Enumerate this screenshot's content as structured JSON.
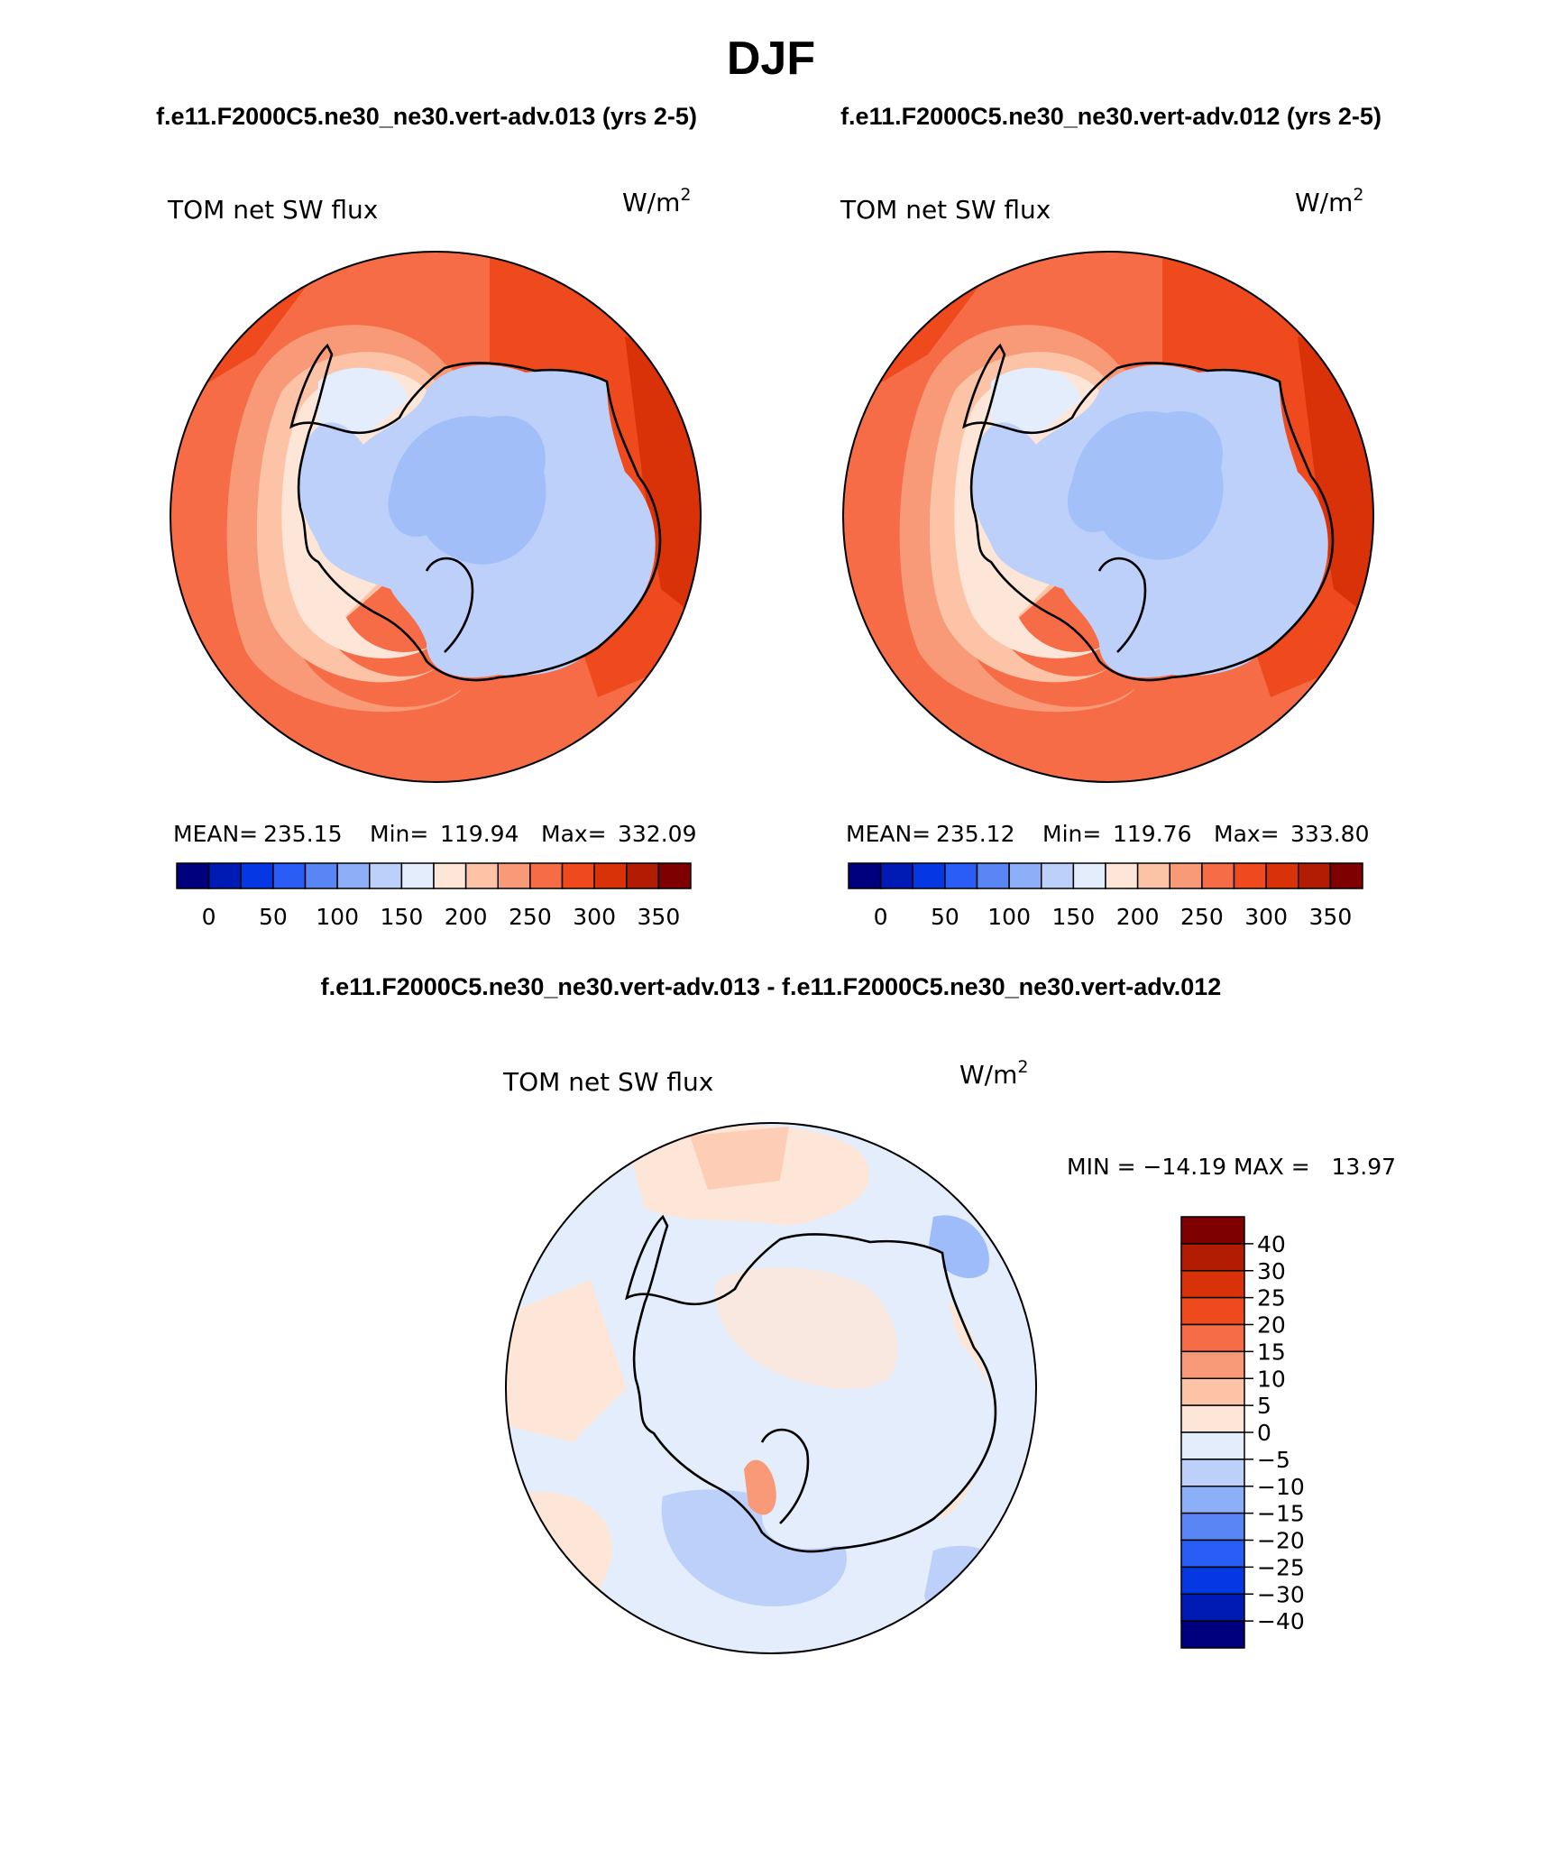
{
  "figure": {
    "season": "DJF",
    "case1_title": "f.e11.F2000C5.ne30_ne30.vert-adv.013 (yrs 2-5)",
    "case2_title": "f.e11.F2000C5.ne30_ne30.vert-adv.012 (yrs 2-5)",
    "diff_title": "f.e11.F2000C5.ne30_ne30.vert-adv.013 - f.e11.F2000C5.ne30_ne30.vert-adv.012"
  },
  "chart_data": [
    {
      "type": "heatmap",
      "projection": "south-polar-stereographic",
      "variable": "TOM net SW flux",
      "units": "W/m",
      "units_exponent": "2",
      "stats": {
        "mean_label": "MEAN=",
        "mean": "235.15",
        "min_label": "Min=",
        "min": "119.94",
        "max_label": "Max=",
        "max": "332.09"
      },
      "colorbar": {
        "orientation": "horizontal",
        "levels": [
          0,
          25,
          50,
          75,
          100,
          125,
          150,
          175,
          200,
          225,
          250,
          275,
          300,
          325,
          350
        ],
        "tick_labels": [
          "0",
          "50",
          "100",
          "150",
          "200",
          "250",
          "300",
          "350"
        ],
        "colors": [
          "#00007f",
          "#001bb4",
          "#0537e2",
          "#2a5df5",
          "#5a86f5",
          "#8caff7",
          "#bcd0fa",
          "#e3edfc",
          "#fde6d8",
          "#fcc3a7",
          "#f89a77",
          "#f66c47",
          "#ee4a1d",
          "#d93208",
          "#b21c02",
          "#7f0000"
        ]
      }
    },
    {
      "type": "heatmap",
      "projection": "south-polar-stereographic",
      "variable": "TOM net SW flux",
      "units": "W/m",
      "units_exponent": "2",
      "stats": {
        "mean_label": "MEAN=",
        "mean": "235.12",
        "min_label": "Min=",
        "min": "119.76",
        "max_label": "Max=",
        "max": "333.80"
      },
      "colorbar": {
        "orientation": "horizontal",
        "levels": [
          0,
          25,
          50,
          75,
          100,
          125,
          150,
          175,
          200,
          225,
          250,
          275,
          300,
          325,
          350
        ],
        "tick_labels": [
          "0",
          "50",
          "100",
          "150",
          "200",
          "250",
          "300",
          "350"
        ],
        "colors": [
          "#00007f",
          "#001bb4",
          "#0537e2",
          "#2a5df5",
          "#5a86f5",
          "#8caff7",
          "#bcd0fa",
          "#e3edfc",
          "#fde6d8",
          "#fcc3a7",
          "#f89a77",
          "#f66c47",
          "#ee4a1d",
          "#d93208",
          "#b21c02",
          "#7f0000"
        ]
      }
    },
    {
      "type": "heatmap",
      "projection": "south-polar-stereographic",
      "variable": "TOM net SW flux",
      "units": "W/m",
      "units_exponent": "2",
      "stats": {
        "text": "MIN = −14.19 MAX =   13.97"
      },
      "colorbar": {
        "orientation": "vertical",
        "levels": [
          -40,
          -30,
          -25,
          -20,
          -15,
          -10,
          -5,
          0,
          5,
          10,
          15,
          20,
          25,
          30,
          40
        ],
        "tick_labels": [
          "40",
          "30",
          "25",
          "20",
          "15",
          "10",
          "5",
          "0",
          "−5",
          "−10",
          "−15",
          "−20",
          "−25",
          "−30",
          "−40"
        ],
        "colors": [
          "#7f0000",
          "#b21c02",
          "#d93208",
          "#ee4a1d",
          "#f66c47",
          "#f89a77",
          "#fcc3a7",
          "#fde6d8",
          "#e3edfc",
          "#bcd0fa",
          "#8caff7",
          "#5a86f5",
          "#2a5df5",
          "#0537e2",
          "#001bb4",
          "#00007f"
        ]
      }
    }
  ]
}
